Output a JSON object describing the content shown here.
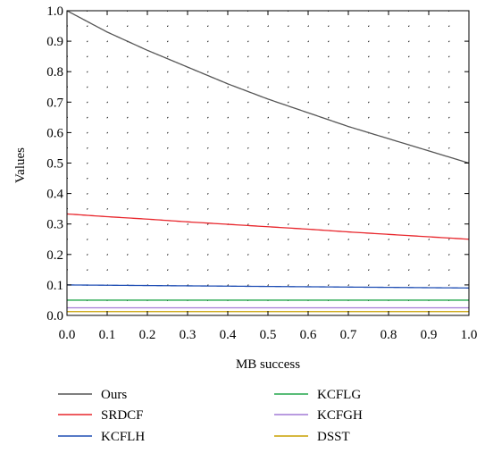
{
  "chart_data": {
    "type": "line",
    "title": "",
    "xlabel": "MB success",
    "ylabel": "Values",
    "xlim": [
      0.0,
      1.0
    ],
    "ylim": [
      0.0,
      1.0
    ],
    "x_ticks": [
      "0.0",
      "0.1",
      "0.2",
      "0.3",
      "0.4",
      "0.5",
      "0.6",
      "0.7",
      "0.8",
      "0.9",
      "1.0"
    ],
    "y_ticks": [
      "0.0",
      "0.1",
      "0.2",
      "0.3",
      "0.4",
      "0.5",
      "0.6",
      "0.7",
      "0.8",
      "0.9",
      "1.0"
    ],
    "grid": "dotted",
    "legend_position": "bottom",
    "x": [
      0.0,
      0.1,
      0.2,
      0.3,
      0.4,
      0.5,
      0.6,
      0.7,
      0.8,
      0.9,
      1.0
    ],
    "series": [
      {
        "name": "Ours",
        "color": "#555555",
        "values": [
          1.0,
          0.93,
          0.87,
          0.815,
          0.76,
          0.71,
          0.665,
          0.62,
          0.58,
          0.54,
          0.5
        ]
      },
      {
        "name": "SRDCF",
        "color": "#e8262c",
        "values": [
          0.333,
          0.324,
          0.316,
          0.307,
          0.299,
          0.291,
          0.283,
          0.274,
          0.266,
          0.258,
          0.25
        ]
      },
      {
        "name": "KCFLH",
        "color": "#1f4eb4",
        "values": [
          0.1,
          0.099,
          0.098,
          0.097,
          0.096,
          0.095,
          0.094,
          0.093,
          0.092,
          0.091,
          0.09
        ]
      },
      {
        "name": "KCFLG",
        "color": "#22a64a",
        "values": [
          0.05,
          0.05,
          0.05,
          0.05,
          0.05,
          0.05,
          0.05,
          0.05,
          0.05,
          0.05,
          0.05
        ]
      },
      {
        "name": "KCFGH",
        "color": "#a27ad6",
        "values": [
          0.025,
          0.025,
          0.025,
          0.025,
          0.025,
          0.025,
          0.025,
          0.025,
          0.025,
          0.025,
          0.025
        ]
      },
      {
        "name": "DSST",
        "color": "#c9a000",
        "values": [
          0.0125,
          0.0125,
          0.0125,
          0.0125,
          0.0125,
          0.0125,
          0.0125,
          0.0125,
          0.0125,
          0.0125,
          0.0125
        ]
      }
    ]
  }
}
